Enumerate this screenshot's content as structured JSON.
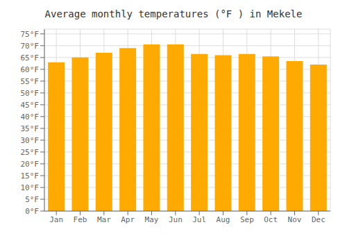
{
  "chart_data": {
    "type": "bar",
    "title": "Average monthly temperatures (°F ) in Mekele",
    "categories": [
      "Jan",
      "Feb",
      "Mar",
      "Apr",
      "May",
      "Jun",
      "Jul",
      "Aug",
      "Sep",
      "Oct",
      "Nov",
      "Dec"
    ],
    "values": [
      63,
      65,
      67,
      69,
      70.5,
      70.5,
      66.5,
      66,
      66.5,
      65.5,
      63.5,
      62
    ],
    "color": "#FFAA00",
    "ylim": [
      0,
      77
    ],
    "yticks": [
      {
        "value": 0,
        "label": "0°F"
      },
      {
        "value": 5,
        "label": "5°F"
      },
      {
        "value": 10,
        "label": "10°F"
      },
      {
        "value": 15,
        "label": "15°F"
      },
      {
        "value": 20,
        "label": "20°F"
      },
      {
        "value": 25,
        "label": "25°F"
      },
      {
        "value": 30,
        "label": "30°F"
      },
      {
        "value": 35,
        "label": "35°F"
      },
      {
        "value": 40,
        "label": "40°F"
      },
      {
        "value": 45,
        "label": "45°F"
      },
      {
        "value": 50,
        "label": "50°F"
      },
      {
        "value": 55,
        "label": "55°F"
      },
      {
        "value": 60,
        "label": "60°F"
      },
      {
        "value": 65,
        "label": "65°F"
      },
      {
        "value": 70,
        "label": "70°F"
      },
      {
        "value": 75,
        "label": "75°F"
      }
    ],
    "grid": true
  }
}
